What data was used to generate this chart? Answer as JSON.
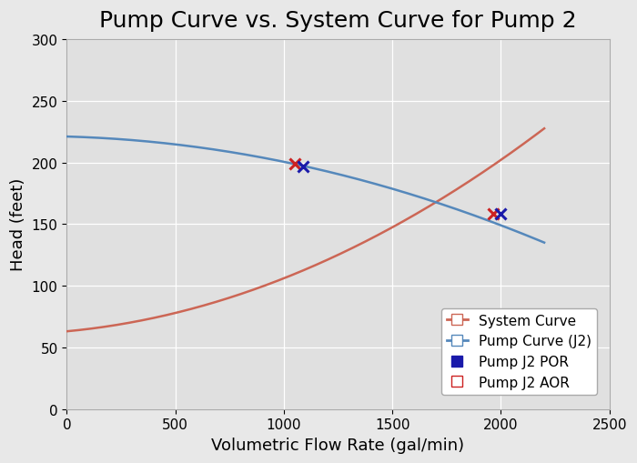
{
  "title": "Pump Curve vs. System Curve for Pump 2",
  "xlabel": "Volumetric Flow Rate (gal/min)",
  "ylabel": "Head (feet)",
  "xlim": [
    0,
    2500
  ],
  "ylim": [
    0,
    300
  ],
  "xticks": [
    0,
    500,
    1000,
    1500,
    2000,
    2500
  ],
  "yticks": [
    0,
    50,
    100,
    150,
    200,
    250,
    300
  ],
  "bg_color": "#e8e8e8",
  "plot_bg_color": "#e0e0e0",
  "system_curve_color": "#cc6655",
  "pump_curve_color": "#5588bb",
  "por_marker_color": "#1a1aaa",
  "aor_marker_color": "#cc2222",
  "grid_color": "#ffffff",
  "legend_labels": [
    "System Curve",
    "Pump Curve (J2)",
    "Pump J2 POR",
    "Pump J2 AOR"
  ],
  "legend_box_colors": [
    "#cc6655",
    "#5588bb",
    "#1a1aaa",
    "#cc2222"
  ],
  "title_fontsize": 18,
  "axis_label_fontsize": 13,
  "tick_fontsize": 11,
  "por_x": 1090,
  "por_y": 197,
  "aor_x": 1050,
  "aor_y": 199,
  "op_x": 1965,
  "op_y_pump": 158,
  "op_y_system": 158,
  "op_x2": 2000,
  "op_y2_pump": 158,
  "op_y2_system": 157
}
